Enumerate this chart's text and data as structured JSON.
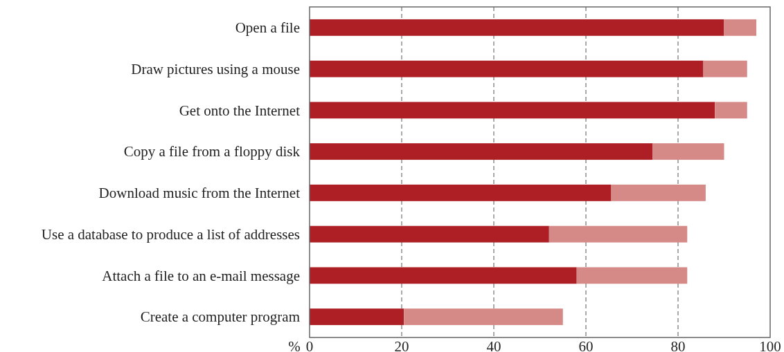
{
  "chart_data": {
    "type": "bar",
    "orientation": "horizontal",
    "stacked": true,
    "xlabel": "%",
    "categories": [
      "Open a file",
      "Draw pictures using a mouse",
      "Get onto the Internet",
      "Copy a file from a floppy disk",
      "Download music from the Internet",
      "Use a database to produce a list of addresses",
      "Attach a file to an e-mail message",
      "Create a computer program"
    ],
    "series": [
      {
        "color": "#ad1f24",
        "values": [
          90,
          85.5,
          88,
          74.5,
          65.5,
          52,
          58,
          20.5
        ]
      },
      {
        "color": "#d68a88",
        "values": [
          7,
          9.5,
          7,
          15.5,
          20.5,
          30,
          24,
          34.5
        ]
      }
    ],
    "xlim": [
      0,
      100
    ],
    "xticks": [
      0,
      20,
      40,
      60,
      80,
      100
    ],
    "grid": "x"
  }
}
